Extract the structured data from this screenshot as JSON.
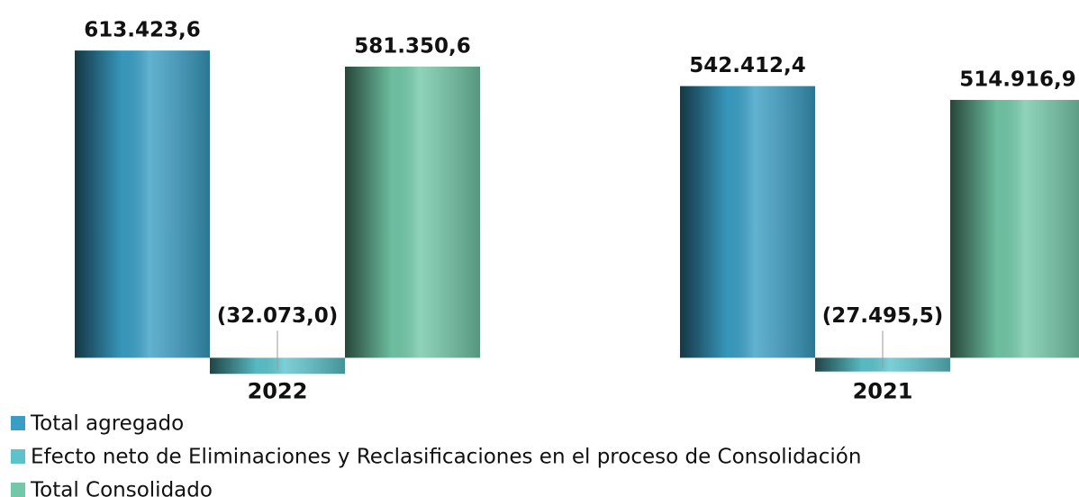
{
  "chart_data": {
    "type": "bar",
    "categories": [
      "2022",
      "2021"
    ],
    "series": [
      {
        "name": "Total agregado",
        "color": "#3a9ec4",
        "values": [
          613423.6,
          542412.4
        ],
        "value_labels": [
          "613.423,6",
          "542.412,4"
        ]
      },
      {
        "name": "Efecto neto de Eliminaciones y Reclasificaciones en el proceso de Consolidación",
        "color": "#5cc3cc",
        "values": [
          -32073.0,
          -27495.5
        ],
        "value_labels": [
          "(32.073,0)",
          "(27.495,5)"
        ]
      },
      {
        "name": "Total Consolidado",
        "color": "#72c8a8",
        "values": [
          581350.6,
          514916.9
        ],
        "value_labels": [
          "581.350,6",
          "514.916,9"
        ]
      }
    ],
    "ylim": [
      -100000,
      700000
    ]
  }
}
